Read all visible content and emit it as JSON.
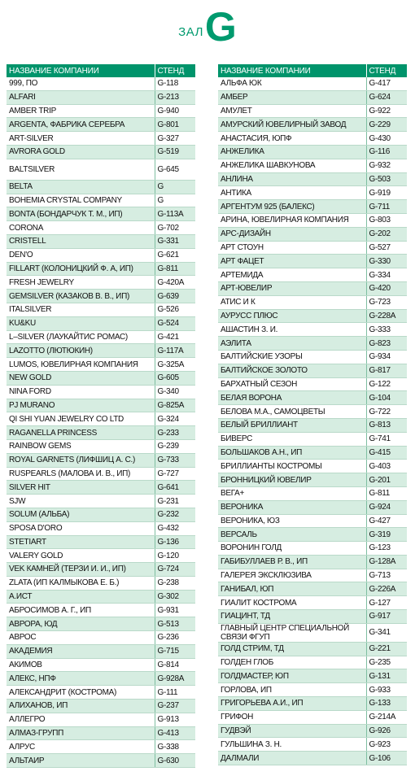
{
  "header": {
    "hall": "ЗАЛ",
    "letter": "G"
  },
  "tables": [
    {
      "columns": [
        "НАЗВАНИЕ КОМПАНИИ",
        "СТЕНД"
      ],
      "rows": [
        [
          "999, ПО",
          "G-118"
        ],
        [
          "ALFARI",
          "G-213"
        ],
        [
          "AMBER TRIP",
          "G-940"
        ],
        [
          "ARGENTA, ФАБРИКА СЕРЕБРА",
          "G-801"
        ],
        [
          "ART-SILVER",
          "G-327"
        ],
        [
          "AVRORA GOLD",
          "G-519"
        ],
        [
          "BALTSILVER",
          "G-645"
        ],
        [
          "BELTA",
          "G"
        ],
        [
          "BOHEMIA CRYSTAL COMPANY",
          "G"
        ],
        [
          "BONTA (БОНДАРЧУК Т. М., ИП)",
          "G-113A"
        ],
        [
          "CORONA",
          "G-702"
        ],
        [
          "CRISTELL",
          "G-331"
        ],
        [
          "DEN'O",
          "G-621"
        ],
        [
          "FILLART (КОЛОНИЦКИЙ Ф. А, ИП)",
          "G-811"
        ],
        [
          "FRESH JEWELRY",
          "G-420A"
        ],
        [
          "GEMSILVER (КАЗАКОВ В. В., ИП)",
          "G-639"
        ],
        [
          "ITALSILVER",
          "G-526"
        ],
        [
          "KU&KU",
          "G-524"
        ],
        [
          "L–SILVER (ЛАУКАЙТИС РОМАС)",
          "G-421"
        ],
        [
          "LAZOTTO (ЛЮТЮКИН)",
          "G-117A"
        ],
        [
          "LUMOS, ЮВЕЛИРНАЯ КОМПАНИЯ",
          "G-325A"
        ],
        [
          "NEW GOLD",
          "G-605"
        ],
        [
          "NINA FORD",
          "G-340"
        ],
        [
          "PJ MURANO",
          "G-825A"
        ],
        [
          "QI SHI YUAN JEWELRY CO LTD",
          "G-324"
        ],
        [
          "RAGANELLA PRINCESS",
          "G-233"
        ],
        [
          "RAINBOW GEMS",
          "G-239"
        ],
        [
          "ROYAL GARNETS (ЛИФШИЦ А. С.)",
          "G-733"
        ],
        [
          "RUSPEARLS (МАЛОВА И. В., ИП)",
          "G-727"
        ],
        [
          "SILVER HIT",
          "G-641"
        ],
        [
          "SJW",
          "G-231"
        ],
        [
          "SOLUM (АЛЬБА)",
          "G-232"
        ],
        [
          "SPOSA D'ORO",
          "G-432"
        ],
        [
          "STETIART",
          "G-136"
        ],
        [
          "VALERY GOLD",
          "G-120"
        ],
        [
          "VEK КАМНЕЙ (ТЕРЗИ И. И., ИП)",
          "G-724"
        ],
        [
          "ZLATA (ИП КАЛМЫКОВА Е. Б.)",
          "G-238"
        ],
        [
          "А.ИСТ",
          "G-302"
        ],
        [
          "АБРОСИМОВ А. Г., ИП",
          "G-931"
        ],
        [
          "АВРОРА, ЮД",
          "G-513"
        ],
        [
          "АВРОС",
          "G-236"
        ],
        [
          "АКАДЕМИЯ",
          "G-715"
        ],
        [
          "АКИМОВ",
          "G-814"
        ],
        [
          "АЛЕКС, НПФ",
          "G-928A"
        ],
        [
          "АЛЕКСАНДРИТ (КОСТРОМА)",
          "G-111"
        ],
        [
          "АЛИХАНОВ, ИП",
          "G-237"
        ],
        [
          "АЛЛЕГРО",
          "G-913"
        ],
        [
          "АЛМАЗ-ГРУПП",
          "G-413"
        ],
        [
          "АЛРУС",
          "G-338"
        ],
        [
          "АЛЬТАИР",
          "G-630"
        ]
      ]
    },
    {
      "columns": [
        "НАЗВАНИЕ КОМПАНИИ",
        "СТЕНД"
      ],
      "rows": [
        [
          "АЛЬФА ЮК",
          "G-417"
        ],
        [
          "АМБЕР",
          "G-624"
        ],
        [
          "АМУЛЕТ",
          "G-922"
        ],
        [
          "АМУРСКИЙ ЮВЕЛИРНЫЙ ЗАВОД",
          "G-229"
        ],
        [
          "АНАСТАСИЯ, ЮПФ",
          "G-430"
        ],
        [
          "АНЖЕЛИКА",
          "G-116"
        ],
        [
          "АНЖЕЛИКА ШАВКУНОВА",
          "G-932"
        ],
        [
          "АНЛИНА",
          "G-503"
        ],
        [
          "АНТИКА",
          "G-919"
        ],
        [
          "АРГЕНТУМ 925 (БАЛЕКС)",
          "G-711"
        ],
        [
          "АРИНА, ЮВЕЛИРНАЯ КОМПАНИЯ",
          "G-803"
        ],
        [
          "АРС-ДИЗАЙН",
          "G-202"
        ],
        [
          "АРТ СТОУН",
          "G-527"
        ],
        [
          "АРТ ФАЦЕТ",
          "G-330"
        ],
        [
          "АРТЕМИДА",
          "G-334"
        ],
        [
          "АРТ-ЮВЕЛИР",
          "G-420"
        ],
        [
          "АТИС И К",
          "G-723"
        ],
        [
          "АУРУСС ПЛЮС",
          "G-228A"
        ],
        [
          "АШАСТИН З. И.",
          "G-333"
        ],
        [
          "АЭЛИТА",
          "G-823"
        ],
        [
          "БАЛТИЙСКИЕ УЗОРЫ",
          "G-934"
        ],
        [
          "БАЛТИЙСКОЕ ЗОЛОТО",
          "G-817"
        ],
        [
          "БАРХАТНЫЙ СЕЗОН",
          "G-122"
        ],
        [
          "БЕЛАЯ ВОРОНА",
          "G-104"
        ],
        [
          "БЕЛОВА М.А., САМОЦВЕТЫ",
          "G-722"
        ],
        [
          "БЕЛЫЙ БРИЛЛИАНТ",
          "G-813"
        ],
        [
          "БИВЕРС",
          "G-741"
        ],
        [
          "БОЛЬШАКОВ А.Н., ИП",
          "G-415"
        ],
        [
          "БРИЛЛИАНТЫ КОСТРОМЫ",
          "G-403"
        ],
        [
          "БРОННИЦКИЙ ЮВЕЛИР",
          "G-201"
        ],
        [
          "ВЕГА+",
          "G-811"
        ],
        [
          "ВЕРОНИКА",
          "G-924"
        ],
        [
          "ВЕРОНИКА, ЮЗ",
          "G-427"
        ],
        [
          "ВЕРСАЛЬ",
          "G-319"
        ],
        [
          "ВОРОНИН ГОЛД",
          "G-123"
        ],
        [
          "ГАБИБУЛЛАЕВ Р. В., ИП",
          "G-128A"
        ],
        [
          "ГАЛЕРЕЯ ЭКСКЛЮЗИВА",
          "G-713"
        ],
        [
          "ГАНИБАЛ, ЮП",
          "G-226A"
        ],
        [
          "ГИАЛИТ КОСТРОМА",
          "G-127"
        ],
        [
          "ГИАЦИНТ, ТД",
          "G-917"
        ],
        [
          "ГЛАВНЫЙ ЦЕНТР СПЕЦИАЛЬНОЙ СВЯЗИ ФГУП",
          "G-341"
        ],
        [
          "ГОЛД СТРИМ, ТД",
          "G-221"
        ],
        [
          "ГОЛДЕН ГЛОБ",
          "G-235"
        ],
        [
          "ГОЛДМАСТЕР, ЮП",
          "G-131"
        ],
        [
          "ГОРЛОВА, ИП",
          "G-933"
        ],
        [
          "ГРИГОРЬЕВА А.И., ИП",
          "G-133"
        ],
        [
          "ГРИФОН",
          "G-214A"
        ],
        [
          "ГУДВЭЙ",
          "G-926"
        ],
        [
          "ГУЛЬШИНА З. Н.",
          "G-923"
        ],
        [
          "ДАЛМАЛИ",
          "G-106"
        ]
      ]
    }
  ]
}
